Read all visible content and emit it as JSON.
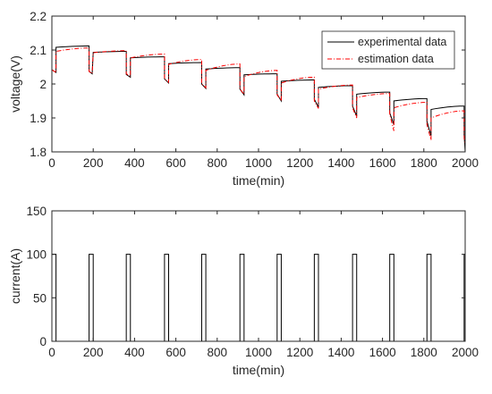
{
  "chart_data": [
    {
      "type": "line",
      "xlabel": "time(min)",
      "ylabel": "voltage(V)",
      "xlim": [
        0,
        2000
      ],
      "ylim": [
        1.8,
        2.2
      ],
      "xticks": [
        "0",
        "200",
        "400",
        "600",
        "800",
        "1000",
        "1200",
        "1400",
        "1600",
        "1800",
        "2000"
      ],
      "yticks": [
        "1.8",
        "1.9",
        "2",
        "2.1",
        "2.2"
      ],
      "grid": false,
      "legend": "top-right",
      "series": [
        {
          "name": "experimental data",
          "color": "#000000",
          "style": "solid",
          "cycles": [
            {
              "rest_start": 20,
              "rest_end": 180,
              "v_start": 2.108,
              "v_end": 2.112,
              "discharge_end": 195,
              "dv_start": 2.037,
              "dv_end": 2.03
            },
            {
              "rest_start": 200,
              "rest_end": 360,
              "v_start": 2.093,
              "v_end": 2.096,
              "discharge_end": 380,
              "dv_start": 2.028,
              "dv_end": 2.02
            },
            {
              "rest_start": 380,
              "rest_end": 545,
              "v_start": 2.077,
              "v_end": 2.08,
              "discharge_end": 565,
              "dv_start": 2.015,
              "dv_end": 2.003
            },
            {
              "rest_start": 565,
              "rest_end": 725,
              "v_start": 2.06,
              "v_end": 2.063,
              "discharge_end": 745,
              "dv_start": 2.0,
              "dv_end": 1.987
            },
            {
              "rest_start": 745,
              "rest_end": 910,
              "v_start": 2.044,
              "v_end": 2.048,
              "discharge_end": 930,
              "dv_start": 1.985,
              "dv_end": 1.968
            },
            {
              "rest_start": 930,
              "rest_end": 1090,
              "v_start": 2.027,
              "v_end": 2.03,
              "discharge_end": 1110,
              "dv_start": 1.97,
              "dv_end": 1.95
            },
            {
              "rest_start": 1110,
              "rest_end": 1270,
              "v_start": 2.008,
              "v_end": 2.012,
              "discharge_end": 1290,
              "dv_start": 1.955,
              "dv_end": 1.932
            },
            {
              "rest_start": 1290,
              "rest_end": 1455,
              "v_start": 1.99,
              "v_end": 1.995,
              "discharge_end": 1475,
              "dv_start": 1.935,
              "dv_end": 1.905
            },
            {
              "rest_start": 1475,
              "rest_end": 1635,
              "v_start": 1.97,
              "v_end": 1.976,
              "discharge_end": 1655,
              "dv_start": 1.915,
              "dv_end": 1.88
            },
            {
              "rest_start": 1655,
              "rest_end": 1815,
              "v_start": 1.95,
              "v_end": 1.957,
              "discharge_end": 1835,
              "dv_start": 1.89,
              "dv_end": 1.848
            },
            {
              "rest_start": 1835,
              "rest_end": 1995,
              "v_start": 1.925,
              "v_end": 1.935,
              "discharge_end": 2000,
              "dv_start": 1.85,
              "dv_end": 1.8
            }
          ]
        },
        {
          "name": "estimation data",
          "color": "#ff0000",
          "style": "dashdot",
          "cycles": [
            {
              "rest_start": 20,
              "rest_end": 180,
              "v_start": 2.096,
              "v_end": 2.106,
              "discharge_end": 195,
              "dv_start": 2.037,
              "dv_end": 2.031
            },
            {
              "rest_start": 200,
              "rest_end": 360,
              "v_start": 2.092,
              "v_end": 2.098,
              "discharge_end": 380,
              "dv_start": 2.03,
              "dv_end": 2.022
            },
            {
              "rest_start": 380,
              "rest_end": 545,
              "v_start": 2.077,
              "v_end": 2.088,
              "discharge_end": 565,
              "dv_start": 2.015,
              "dv_end": 2.005
            },
            {
              "rest_start": 565,
              "rest_end": 725,
              "v_start": 2.058,
              "v_end": 2.072,
              "discharge_end": 745,
              "dv_start": 2.0,
              "dv_end": 1.989
            },
            {
              "rest_start": 745,
              "rest_end": 910,
              "v_start": 2.04,
              "v_end": 2.059,
              "discharge_end": 930,
              "dv_start": 1.985,
              "dv_end": 1.97
            },
            {
              "rest_start": 930,
              "rest_end": 1090,
              "v_start": 2.022,
              "v_end": 2.04,
              "discharge_end": 1110,
              "dv_start": 1.968,
              "dv_end": 1.95
            },
            {
              "rest_start": 1110,
              "rest_end": 1270,
              "v_start": 2.003,
              "v_end": 2.02,
              "discharge_end": 1290,
              "dv_start": 1.95,
              "dv_end": 1.928
            },
            {
              "rest_start": 1290,
              "rest_end": 1455,
              "v_start": 1.985,
              "v_end": 1.997,
              "discharge_end": 1475,
              "dv_start": 1.93,
              "dv_end": 1.9
            },
            {
              "rest_start": 1475,
              "rest_end": 1635,
              "v_start": 1.96,
              "v_end": 1.972,
              "discharge_end": 1655,
              "dv_start": 1.91,
              "dv_end": 1.862
            },
            {
              "rest_start": 1655,
              "rest_end": 1815,
              "v_start": 1.93,
              "v_end": 1.946,
              "discharge_end": 1835,
              "dv_start": 1.88,
              "dv_end": 1.835
            },
            {
              "rest_start": 1835,
              "rest_end": 1995,
              "v_start": 1.9,
              "v_end": 1.921,
              "discharge_end": 2000,
              "dv_start": 1.84,
              "dv_end": 1.82
            }
          ]
        }
      ]
    },
    {
      "type": "line",
      "xlabel": "time(min)",
      "ylabel": "current(A)",
      "xlim": [
        0,
        2000
      ],
      "ylim": [
        0,
        150
      ],
      "xticks": [
        "0",
        "200",
        "400",
        "600",
        "800",
        "1000",
        "1200",
        "1400",
        "1600",
        "1800",
        "2000"
      ],
      "yticks": [
        "0",
        "50",
        "100",
        "150"
      ],
      "grid": false,
      "series": [
        {
          "color": "#000000",
          "style": "solid",
          "pulse_value": 100,
          "base_value": 0,
          "pulses": [
            [
              0,
              20
            ],
            [
              180,
              200
            ],
            [
              360,
              380
            ],
            [
              545,
              565
            ],
            [
              725,
              745
            ],
            [
              910,
              930
            ],
            [
              1090,
              1110
            ],
            [
              1270,
              1290
            ],
            [
              1455,
              1475
            ],
            [
              1635,
              1655
            ],
            [
              1815,
              1835
            ],
            [
              1995,
              2000
            ]
          ]
        }
      ]
    }
  ]
}
